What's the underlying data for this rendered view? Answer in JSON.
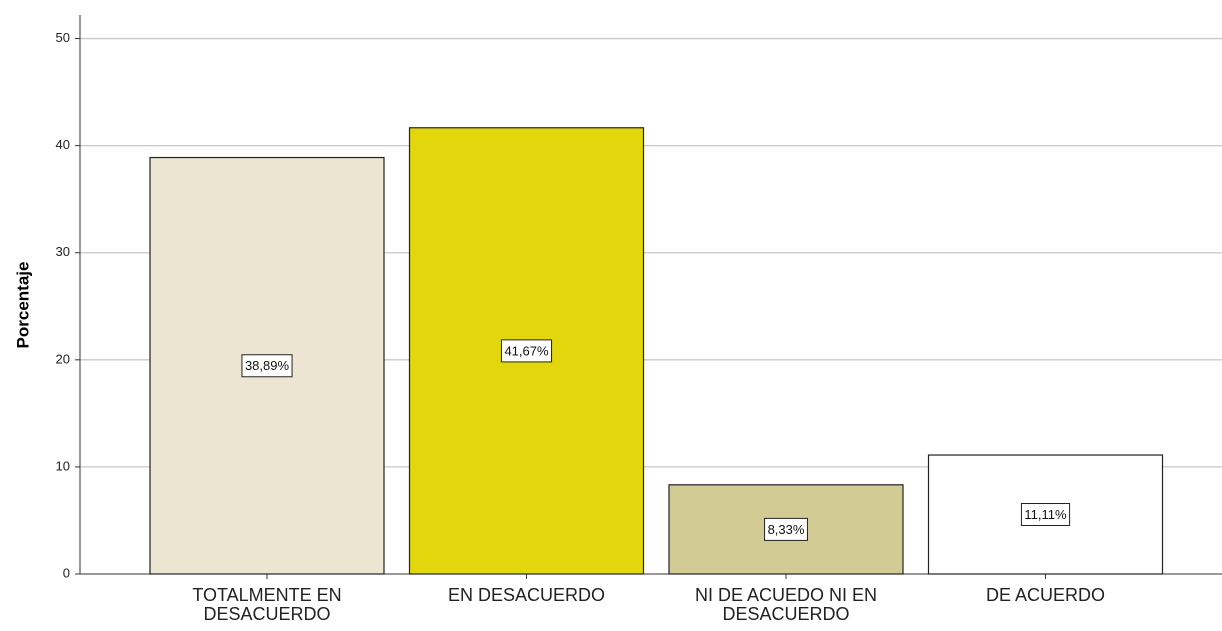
{
  "chart_data": {
    "type": "bar",
    "y_label": "Porcentaje",
    "categories": [
      "TOTALMENTE EN DESACUERDO",
      "EN DESACUERDO",
      "NI DE ACUEDO NI EN DESACUERDO",
      "DE ACUERDO"
    ],
    "values": [
      38.89,
      41.67,
      8.33,
      11.11
    ],
    "value_labels": [
      "38,89%",
      "41,67%",
      "8,33%",
      "11,11%"
    ],
    "colors": [
      "#ebe5d1",
      "#e2d60c",
      "#d2cb93",
      "#ffffff"
    ],
    "ylim": [
      0,
      52.2
    ],
    "yticks": [
      0,
      10,
      20,
      30,
      40,
      50
    ],
    "grid": true
  }
}
